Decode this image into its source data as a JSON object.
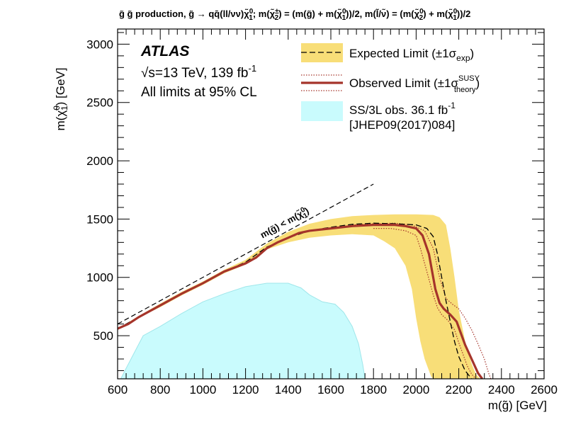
{
  "chart_data": {
    "type": "line",
    "title_parts": {
      "a": "g̃ g̃ production, g̃ → qq̄(ll/νν)χ̃",
      "b": "; m(χ̃",
      "c": ") = (m(g̃) + m(χ̃",
      "d": "))/2, m(l̃/ν̃) = (m(χ̃",
      "e": ") + m(χ̃",
      "f": "))/2",
      "sup0": "0",
      "sup_pm": "±",
      "sub1": "1",
      "sub2": "2"
    },
    "xlabel": "m(g̃) [GeV]",
    "ylabel_parts": {
      "a": "m(χ̃",
      "sup": "0",
      "sub": "1",
      "b": ") [GeV]"
    },
    "xlim": [
      600,
      2600
    ],
    "ylim": [
      130,
      3130
    ],
    "xticks": [
      600,
      800,
      1000,
      1200,
      1400,
      1600,
      1800,
      2000,
      2200,
      2400,
      2600
    ],
    "yticks": [
      500,
      1000,
      1500,
      2000,
      2500,
      3000
    ],
    "xtick_labels": [
      "600",
      "800",
      "1000",
      "1200",
      "1400",
      "1600",
      "1800",
      "2000",
      "2200",
      "2400",
      "2600"
    ],
    "ytick_labels": [
      "500",
      "1000",
      "1500",
      "2000",
      "2500",
      "3000"
    ],
    "experiment": "ATLAS",
    "energy_text": "√s=13 TeV, 139 fb",
    "energy_sup": "-1",
    "cl_text": "All limits at 95% CL",
    "diagonal_label": {
      "a": "m(g̃) < m(χ̃",
      "sup": "0",
      "sub": "1",
      "b": ")"
    },
    "legend": {
      "expected": {
        "a": "Expected Limit (±1σ",
        "sub": "exp",
        "b": ")"
      },
      "observed": {
        "a": "Observed Limit (±1σ",
        "sup": "SUSY",
        "sub": "theory",
        "b": ")"
      },
      "previous_line1": "SS/3L obs. 36.1 fb",
      "previous_line1_sup": "-1",
      "previous_line2": "[JHEP09(2017)084]"
    },
    "colors": {
      "band": "#f8de78",
      "observed": "#a5342b",
      "previous": "#c9fbfd",
      "previous_edge": "#9fe6ea",
      "expected": "#000000"
    },
    "series": [
      {
        "name": "diagonal",
        "x": [
          600,
          1800
        ],
        "y": [
          600,
          1800
        ]
      },
      {
        "name": "observed",
        "x": [
          600,
          650,
          700,
          800,
          900,
          1000,
          1100,
          1200,
          1250,
          1300,
          1350,
          1400,
          1450,
          1500,
          1600,
          1700,
          1800,
          1900,
          1950,
          2000,
          2030,
          2060,
          2090,
          2110,
          2130,
          2160,
          2190,
          2210,
          2230,
          2260,
          2290,
          2310
        ],
        "y": [
          560,
          600,
          660,
          760,
          860,
          950,
          1050,
          1120,
          1170,
          1250,
          1300,
          1340,
          1380,
          1400,
          1420,
          1440,
          1450,
          1450,
          1440,
          1420,
          1360,
          1200,
          900,
          780,
          730,
          680,
          620,
          520,
          420,
          300,
          180,
          130
        ]
      },
      {
        "name": "observed_up",
        "x": [
          1700,
          1800,
          1900,
          1980,
          2040,
          2080,
          2110,
          2140,
          2170,
          2200,
          2230,
          2260,
          2290,
          2320,
          2340,
          2350
        ],
        "y": [
          1450,
          1460,
          1465,
          1450,
          1400,
          1250,
          1000,
          820,
          770,
          730,
          650,
          550,
          430,
          300,
          180,
          130
        ]
      },
      {
        "name": "observed_down",
        "x": [
          1800,
          1880,
          1950,
          2000,
          2020,
          2050,
          2080,
          2100,
          2120,
          2150,
          2180,
          2200,
          2220,
          2240,
          2260,
          2280
        ],
        "y": [
          1420,
          1420,
          1400,
          1360,
          1250,
          1050,
          850,
          740,
          680,
          630,
          550,
          440,
          340,
          240,
          170,
          130
        ]
      },
      {
        "name": "expected",
        "x": [
          600,
          700,
          800,
          900,
          1000,
          1100,
          1200,
          1300,
          1400,
          1500,
          1600,
          1700,
          1800,
          1900,
          2000,
          2050,
          2080,
          2100,
          2120,
          2140,
          2160,
          2180,
          2200,
          2230,
          2260
        ],
        "y": [
          560,
          660,
          760,
          860,
          950,
          1050,
          1130,
          1260,
          1340,
          1400,
          1430,
          1455,
          1465,
          1460,
          1450,
          1420,
          1350,
          1200,
          1000,
          800,
          620,
          450,
          320,
          200,
          130
        ]
      },
      {
        "name": "expected_band_upper",
        "x": [
          600,
          700,
          800,
          900,
          1000,
          1100,
          1200,
          1300,
          1400,
          1500,
          1600,
          1700,
          1800,
          1900,
          2000,
          2080,
          2110,
          2140,
          2160,
          2180,
          2200,
          2230,
          2260,
          2280,
          2300
        ],
        "y": [
          560,
          670,
          775,
          875,
          965,
          1065,
          1150,
          1290,
          1390,
          1460,
          1500,
          1525,
          1535,
          1540,
          1540,
          1535,
          1515,
          1450,
          1250,
          1000,
          720,
          450,
          260,
          170,
          130
        ]
      },
      {
        "name": "expected_band_lower",
        "x": [
          600,
          700,
          800,
          900,
          1000,
          1100,
          1200,
          1300,
          1400,
          1500,
          1600,
          1700,
          1800,
          1850,
          1900,
          1950,
          1980,
          2000,
          2020,
          2040,
          2060,
          2070,
          2080
        ],
        "y": [
          560,
          655,
          745,
          845,
          935,
          1035,
          1110,
          1240,
          1300,
          1340,
          1360,
          1370,
          1360,
          1310,
          1250,
          1100,
          900,
          650,
          450,
          300,
          200,
          150,
          130
        ]
      },
      {
        "name": "previous",
        "x": [
          615,
          640,
          720,
          800,
          900,
          1000,
          1100,
          1200,
          1300,
          1400,
          1460,
          1500,
          1560,
          1620,
          1660,
          1700,
          1730,
          1750,
          1760
        ],
        "y": [
          130,
          220,
          500,
          580,
          690,
          790,
          860,
          920,
          950,
          950,
          910,
          850,
          790,
          770,
          700,
          580,
          430,
          250,
          130
        ]
      }
    ]
  }
}
